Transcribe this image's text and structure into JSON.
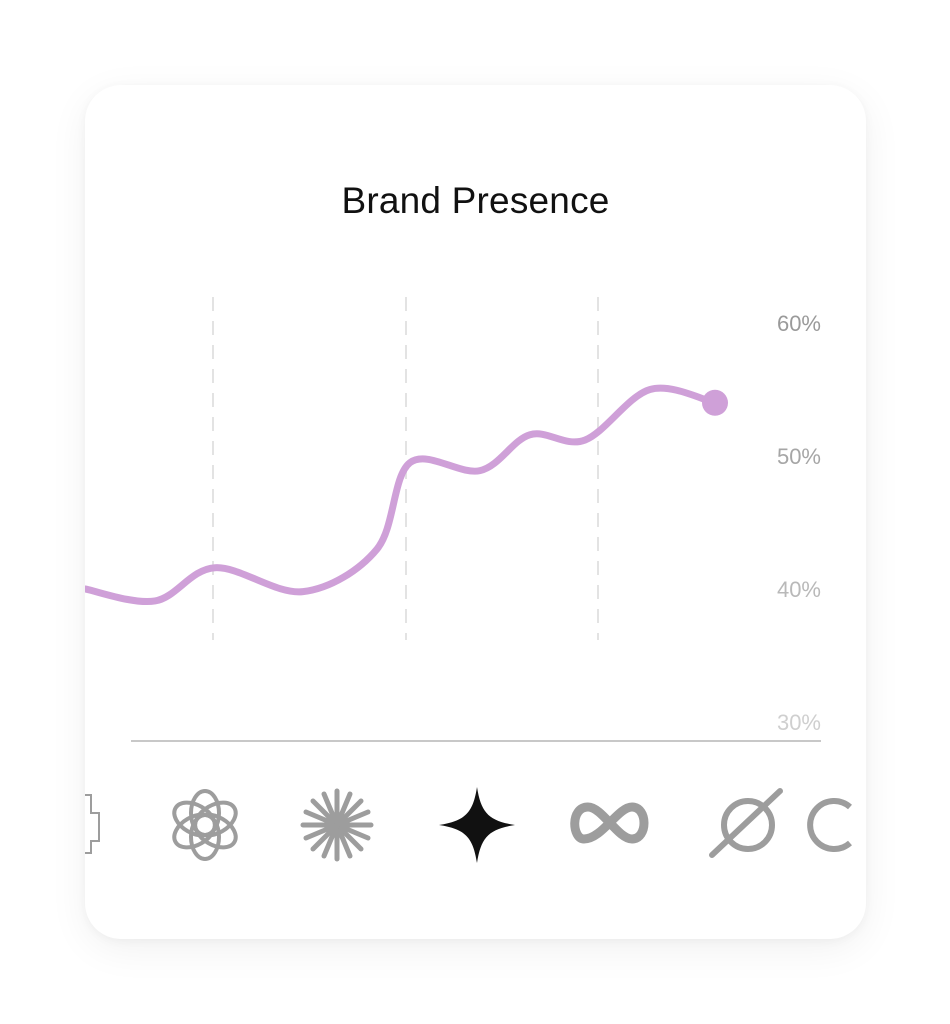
{
  "card": {
    "title": "Brand Presence"
  },
  "colors": {
    "line": "#cfa0d8",
    "gridline": "#e3e3e3",
    "baseline": "#c8c8c8",
    "icon_inactive": "#9d9d9d",
    "icon_active": "#111111",
    "tick_label": [
      "#cfcfcf",
      "#b9b9b9",
      "#a6a6a6",
      "#9a9a9a"
    ]
  },
  "chart_data": {
    "type": "line",
    "title": "Brand Presence",
    "xlabel": "",
    "ylabel": "",
    "ylim": [
      30,
      60
    ],
    "y_ticks": [
      "30%",
      "40%",
      "50%",
      "60%"
    ],
    "y_axis_position": "right",
    "grid": "vertical-dashed",
    "series": [
      {
        "values": [
          40.0,
          39.1,
          41.6,
          39.8,
          43.0,
          49.5,
          48.9,
          51.6,
          51.2,
          55.0,
          54.0
        ]
      }
    ],
    "end_marker": true
  },
  "platforms": [
    {
      "icon": "partial-left-icon",
      "active": false
    },
    {
      "icon": "openai-icon",
      "active": false
    },
    {
      "icon": "claude-starburst-icon",
      "active": false
    },
    {
      "icon": "gemini-sparkle-icon",
      "active": true
    },
    {
      "icon": "meta-infinity-icon",
      "active": false
    },
    {
      "icon": "grok-icon",
      "active": false
    },
    {
      "icon": "partial-right-icon",
      "active": false
    }
  ]
}
